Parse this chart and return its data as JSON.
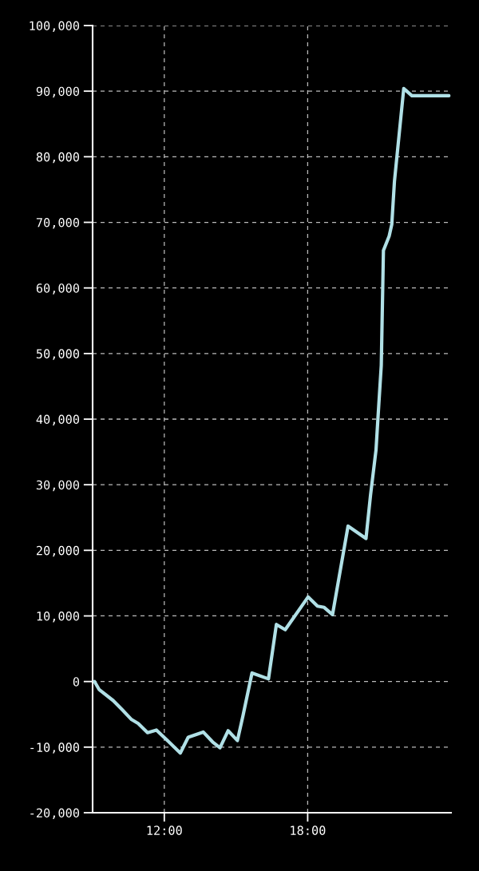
{
  "chart_data": {
    "type": "line",
    "x": [
      9.08,
      9.27,
      9.86,
      10.24,
      10.63,
      10.91,
      11.3,
      11.67,
      12.13,
      12.67,
      13.0,
      13.63,
      14.02,
      14.33,
      14.67,
      15.06,
      15.3,
      15.67,
      16.36,
      16.69,
      17.06,
      18.02,
      18.41,
      18.69,
      19.04,
      19.69,
      20.44,
      20.63,
      20.86,
      20.94,
      21.08,
      21.17,
      21.41,
      21.52,
      21.63,
      22.02,
      22.36,
      23.91
    ],
    "series": [
      {
        "color": "#b0e0e6",
        "values": [
          0,
          -1200,
          -2900,
          -4300,
          -5800,
          -6400,
          -7800,
          -7400,
          -9000,
          -10900,
          -8500,
          -7700,
          -9200,
          -10100,
          -7500,
          -9000,
          -5100,
          1300,
          400,
          8700,
          7900,
          12900,
          11500,
          11300,
          10200,
          23700,
          21800,
          28400,
          35300,
          40100,
          48200,
          65700,
          67900,
          69700,
          76200,
          90400,
          89300,
          89300
        ]
      }
    ],
    "xlim": [
      9,
      24
    ],
    "xticks": [
      {
        "value": 12,
        "label": "12:00"
      },
      {
        "value": 18,
        "label": "18:00"
      }
    ],
    "ylim": [
      -20000,
      100000
    ],
    "yticks": [
      {
        "value": -20000,
        "label": "-20,000"
      },
      {
        "value": -10000,
        "label": "-10,000"
      },
      {
        "value": 0,
        "label": "0"
      },
      {
        "value": 10000,
        "label": "10,000"
      },
      {
        "value": 20000,
        "label": "20,000"
      },
      {
        "value": 30000,
        "label": "30,000"
      },
      {
        "value": 40000,
        "label": "40,000"
      },
      {
        "value": 50000,
        "label": "50,000"
      },
      {
        "value": 60000,
        "label": "60,000"
      },
      {
        "value": 70000,
        "label": "70,000"
      },
      {
        "value": 80000,
        "label": "80,000"
      },
      {
        "value": 90000,
        "label": "90,000"
      },
      {
        "value": 100000,
        "label": "100,000"
      }
    ],
    "grid": true,
    "line_style": "solid",
    "marker": "none"
  }
}
